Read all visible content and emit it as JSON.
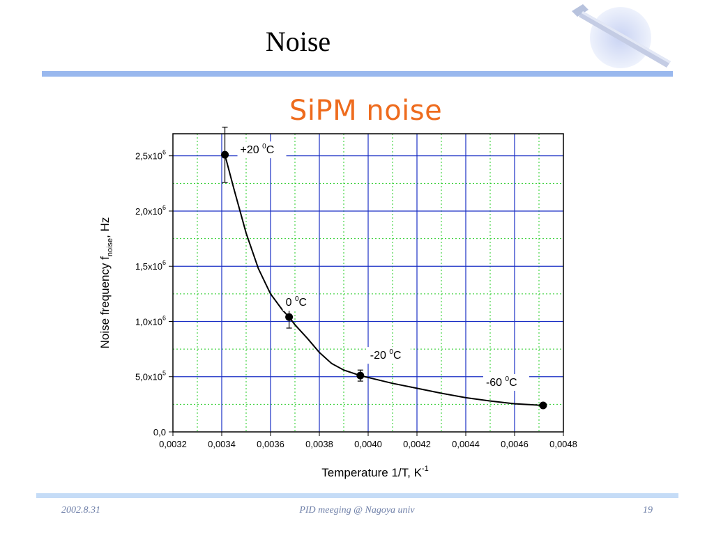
{
  "slide": {
    "title": "Noise",
    "chart_heading": "SiPM noise",
    "footer": {
      "date": "2002.8.31",
      "center": "PID meeging @ Nagoya univ",
      "page": "19"
    }
  },
  "colors": {
    "rule_top": "#99b8ee",
    "rule_bottom": "#c5dcf7",
    "heading": "#ee6b1d",
    "major_grid": "#1a2fc4",
    "minor_grid": "#22cc22",
    "data": "#000000"
  },
  "chart_data": {
    "type": "scatter",
    "x_title": "Temperature 1/T, K",
    "x_title_sup": "-1",
    "y_title": "Noise frequency f",
    "y_title_sub": "noise",
    "y_title_suffix": ", Hz",
    "xlim": [
      0.0032,
      0.0048
    ],
    "ylim": [
      0,
      2700000
    ],
    "grid": true,
    "x_ticks": [
      {
        "value": 0.0032,
        "label": "0,0032"
      },
      {
        "value": 0.0034,
        "label": "0,0034"
      },
      {
        "value": 0.0036,
        "label": "0,0036"
      },
      {
        "value": 0.0038,
        "label": "0,0038"
      },
      {
        "value": 0.004,
        "label": "0,0040"
      },
      {
        "value": 0.0042,
        "label": "0,0042"
      },
      {
        "value": 0.0044,
        "label": "0,0044"
      },
      {
        "value": 0.0046,
        "label": "0,0046"
      },
      {
        "value": 0.0048,
        "label": "0,0048"
      }
    ],
    "y_ticks": [
      {
        "value": 0,
        "mantissa": "0,0",
        "exp": ""
      },
      {
        "value": 500000,
        "mantissa": "5,0x10",
        "exp": "5"
      },
      {
        "value": 1000000,
        "mantissa": "1,0x10",
        "exp": "6"
      },
      {
        "value": 1500000,
        "mantissa": "1,5x10",
        "exp": "6"
      },
      {
        "value": 2000000,
        "mantissa": "2,0x10",
        "exp": "6"
      },
      {
        "value": 2500000,
        "mantissa": "2,5x10",
        "exp": "6"
      }
    ],
    "points": [
      {
        "x": 0.003413,
        "y": 2510000,
        "err": 250000,
        "label": "+20",
        "label_unit": "C",
        "label_sup": "0"
      },
      {
        "x": 0.003676,
        "y": 1040000,
        "err": 100000,
        "label": "0",
        "label_unit": "C",
        "label_sup": "0"
      },
      {
        "x": 0.003968,
        "y": 510000,
        "err": 50000,
        "label": "-20",
        "label_unit": "C",
        "label_sup": "0"
      },
      {
        "x": 0.004717,
        "y": 240000,
        "err": 15000,
        "label": "-60",
        "label_unit": "C",
        "label_sup": "0"
      }
    ],
    "fit_curve": [
      [
        0.003413,
        2510000
      ],
      [
        0.00345,
        2200000
      ],
      [
        0.0035,
        1800000
      ],
      [
        0.00355,
        1480000
      ],
      [
        0.0036,
        1250000
      ],
      [
        0.00365,
        1100000
      ],
      [
        0.003676,
        1040000
      ],
      [
        0.0037,
        970000
      ],
      [
        0.00375,
        850000
      ],
      [
        0.0038,
        720000
      ],
      [
        0.00385,
        620000
      ],
      [
        0.0039,
        560000
      ],
      [
        0.003968,
        510000
      ],
      [
        0.0041,
        440000
      ],
      [
        0.0042,
        395000
      ],
      [
        0.0043,
        350000
      ],
      [
        0.0044,
        310000
      ],
      [
        0.0045,
        280000
      ],
      [
        0.0046,
        255000
      ],
      [
        0.004717,
        240000
      ]
    ]
  }
}
